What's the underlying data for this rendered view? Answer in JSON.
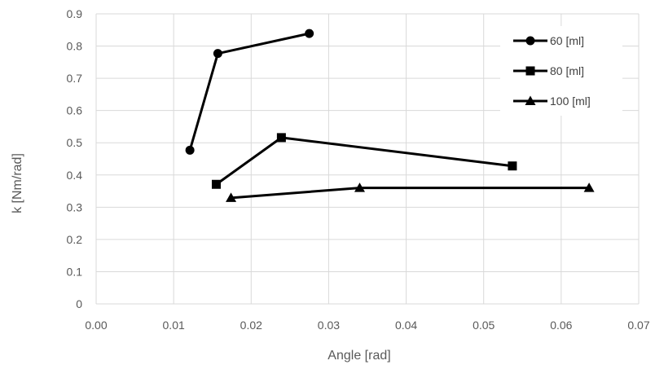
{
  "chart_data": {
    "type": "scatter",
    "xlabel": "Angle [rad]",
    "ylabel": "k [Nm/rad]",
    "xlim": [
      0,
      0.07
    ],
    "ylim": [
      0,
      0.9
    ],
    "x_ticks": [
      "0.00",
      "0.01",
      "0.02",
      "0.03",
      "0.04",
      "0.05",
      "0.06",
      "0.07"
    ],
    "y_ticks": [
      "0",
      "0.1",
      "0.2",
      "0.3",
      "0.4",
      "0.5",
      "0.6",
      "0.7",
      "0.8",
      "0.9"
    ],
    "grid": "horizontal and vertical",
    "legend_position": "top-right",
    "series": [
      {
        "name": "60 [ml]",
        "marker": "circle",
        "color": "#000000",
        "points": [
          [
            0.0121,
            0.477
          ],
          [
            0.0157,
            0.777
          ],
          [
            0.0275,
            0.839
          ]
        ]
      },
      {
        "name": "80 [ml]",
        "marker": "square",
        "color": "#000000",
        "points": [
          [
            0.0155,
            0.371
          ],
          [
            0.0239,
            0.516
          ],
          [
            0.0537,
            0.428
          ]
        ]
      },
      {
        "name": "100 [ml]",
        "marker": "triangle",
        "color": "#000000",
        "points": [
          [
            0.0174,
            0.329
          ],
          [
            0.034,
            0.36
          ],
          [
            0.0636,
            0.36
          ]
        ]
      }
    ]
  }
}
